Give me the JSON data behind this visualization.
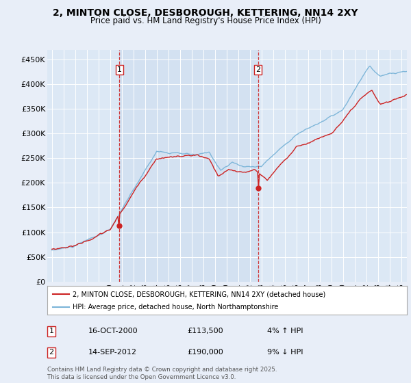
{
  "title": "2, MINTON CLOSE, DESBOROUGH, KETTERING, NN14 2XY",
  "subtitle": "Price paid vs. HM Land Registry's House Price Index (HPI)",
  "ylabel_ticks": [
    "£0",
    "£50K",
    "£100K",
    "£150K",
    "£200K",
    "£250K",
    "£300K",
    "£350K",
    "£400K",
    "£450K"
  ],
  "ytick_values": [
    0,
    50000,
    100000,
    150000,
    200000,
    250000,
    300000,
    350000,
    400000,
    450000
  ],
  "xlim_start": 1994.6,
  "xlim_end": 2025.5,
  "ylim_min": 0,
  "ylim_max": 470000,
  "hpi_color": "#7ab4d8",
  "price_color": "#cc2222",
  "vline_color": "#cc2222",
  "sale1_year": 2000.79,
  "sale2_year": 2012.71,
  "sale1_price": 113500,
  "sale2_price": 190000,
  "sale1_label": "1",
  "sale2_label": "2",
  "legend_line1": "2, MINTON CLOSE, DESBOROUGH, KETTERING, NN14 2XY (detached house)",
  "legend_line2": "HPI: Average price, detached house, North Northamptonshire",
  "annotation1_date": "16-OCT-2000",
  "annotation1_price": "£113,500",
  "annotation1_hpi": "4% ↑ HPI",
  "annotation2_date": "14-SEP-2012",
  "annotation2_price": "£190,000",
  "annotation2_hpi": "9% ↓ HPI",
  "footer": "Contains HM Land Registry data © Crown copyright and database right 2025.\nThis data is licensed under the Open Government Licence v3.0.",
  "background_color": "#e8eef8",
  "plot_bg_color": "#dce8f5",
  "shade_bg_color": "#ccdcee",
  "grid_color": "#ffffff"
}
